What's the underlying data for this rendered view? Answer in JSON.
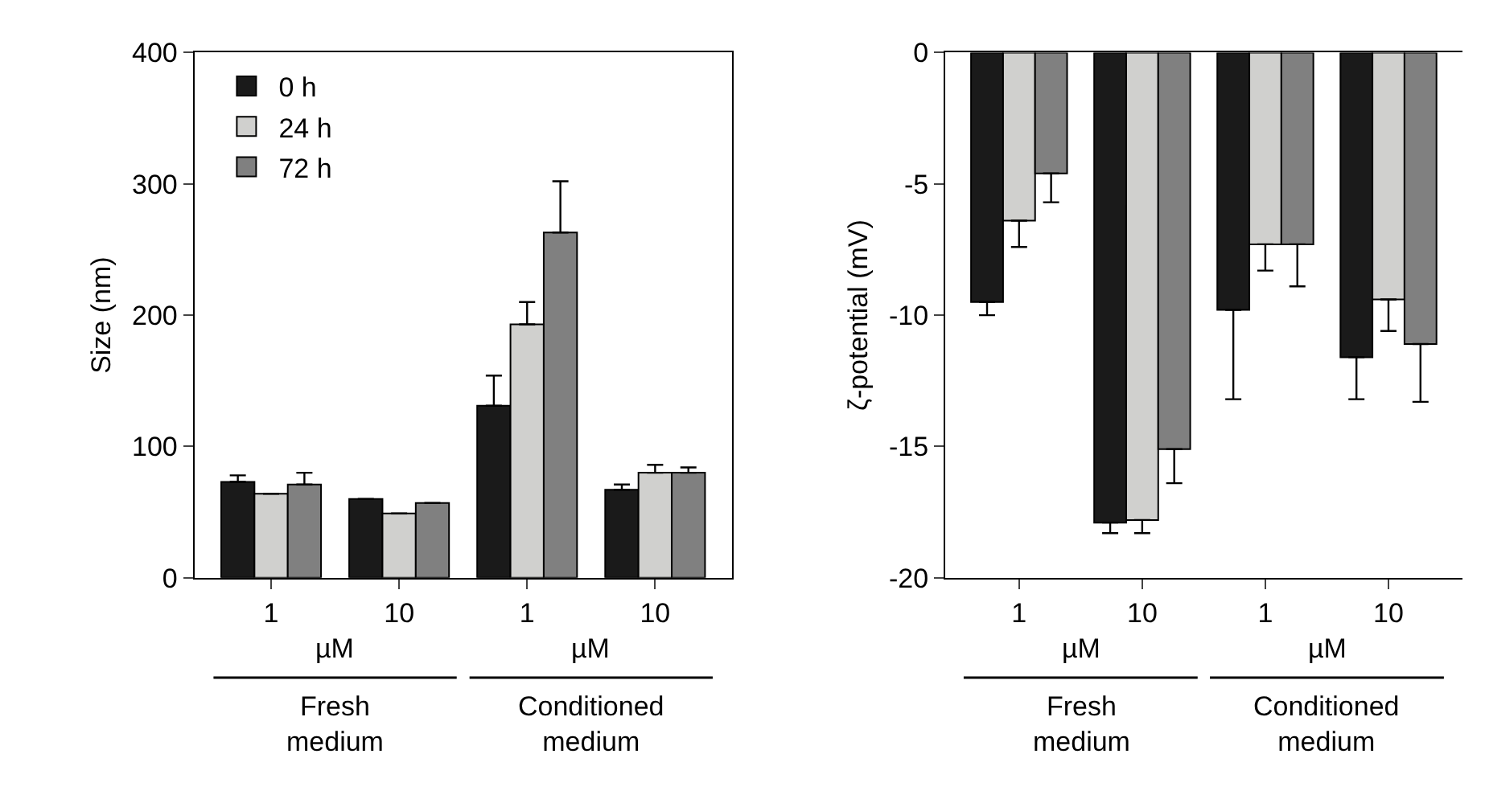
{
  "chart_data": [
    {
      "type": "bar",
      "categories": [
        "1",
        "10",
        "1",
        "10"
      ],
      "ylabel": "Size (nm)",
      "ylim": [
        0,
        400
      ],
      "yticks": [
        0,
        100,
        200,
        300,
        400
      ],
      "legend": "top left",
      "annotations": [
        "µM",
        "Fresh medium",
        "µM",
        "Conditioned medium"
      ],
      "series": [
        {
          "name": "0 h",
          "color": "#1a1a1a",
          "values": [
            73,
            60,
            131,
            67
          ],
          "errors": [
            [
              73,
              78
            ],
            null,
            [
              131,
              154
            ],
            [
              67,
              71
            ]
          ]
        },
        {
          "name": "24 h",
          "color": "#d0d0ce",
          "values": [
            64,
            49,
            193,
            80
          ],
          "errors": [
            null,
            null,
            [
              193,
              210
            ],
            [
              80,
              86
            ]
          ]
        },
        {
          "name": "72 h",
          "color": "#808080",
          "values": [
            71,
            57,
            263,
            80
          ],
          "errors": [
            [
              71,
              80
            ],
            null,
            [
              263,
              302
            ],
            [
              80,
              84
            ]
          ]
        }
      ]
    },
    {
      "type": "bar",
      "categories": [
        "1",
        "10",
        "1",
        "10"
      ],
      "ylabel": "ζ-potential (mV)",
      "ylim": [
        -20,
        0
      ],
      "yticks": [
        -20,
        -15,
        -10,
        -5,
        0
      ],
      "legend": false,
      "annotations": [
        "µM",
        "Fresh medium",
        "µM",
        "Conditioned medium"
      ],
      "series": [
        {
          "color": "#1a1a1a",
          "values": [
            -9.5,
            -17.9,
            -9.8,
            -11.6
          ],
          "errors": [
            [
              -10.0,
              -9.5
            ],
            [
              -18.3,
              -17.9
            ],
            [
              -13.2,
              -9.8
            ],
            [
              -13.2,
              -11.6
            ]
          ]
        },
        {
          "color": "#d0d0ce",
          "values": [
            -6.4,
            -17.8,
            -7.3,
            -9.4
          ],
          "errors": [
            [
              -7.4,
              -6.4
            ],
            [
              -18.3,
              -17.8
            ],
            [
              -8.3,
              -7.3
            ],
            [
              -10.6,
              -9.4
            ]
          ]
        },
        {
          "color": "#808080",
          "values": [
            -4.6,
            -15.1,
            -7.3,
            -11.1
          ],
          "errors": [
            [
              -5.7,
              -4.6
            ],
            [
              -16.4,
              -15.1
            ],
            [
              -8.9,
              -7.3
            ],
            [
              -13.3,
              -11.1
            ]
          ]
        }
      ]
    }
  ]
}
